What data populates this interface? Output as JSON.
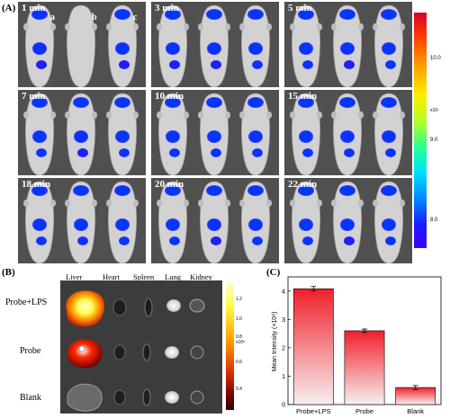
{
  "figure": {
    "panel_a_label": "(A)",
    "panel_b_label": "(B)",
    "panel_c_label": "(C)"
  },
  "panel_a": {
    "timepoints": [
      "1 min",
      "3 min",
      "5 min",
      "7 min",
      "10 min",
      "15 min",
      "18 min",
      "20 min",
      "22 min"
    ],
    "mouse_labels": [
      "a",
      "b",
      "c"
    ],
    "colorbar": {
      "ticks": [
        "10.0",
        "9.0",
        "8.0"
      ],
      "exponent_label": "x10⁷"
    }
  },
  "panel_b": {
    "organs": [
      "Liver",
      "Heart",
      "Spleen",
      "Lung",
      "Kidney"
    ],
    "rows": [
      "Probe+LPS",
      "Probe",
      "Blank"
    ],
    "colorbar": {
      "ticks": [
        "1.2",
        "1.0",
        "0.8",
        "0.6",
        "0.4"
      ],
      "exponent_label": "x10⁸"
    }
  },
  "chart_data": {
    "type": "bar",
    "categories": [
      "Probe+LPS",
      "Probe",
      "Blank"
    ],
    "values": [
      4.08,
      2.6,
      0.6
    ],
    "errors": [
      0.08,
      0.06,
      0.07
    ],
    "ylabel": "Mean Intensity (×10⁸)",
    "ylim": [
      0,
      4.5
    ]
  },
  "colors": {
    "bar_top": "#f0202a",
    "bar_bottom": "#f7f0f0"
  }
}
